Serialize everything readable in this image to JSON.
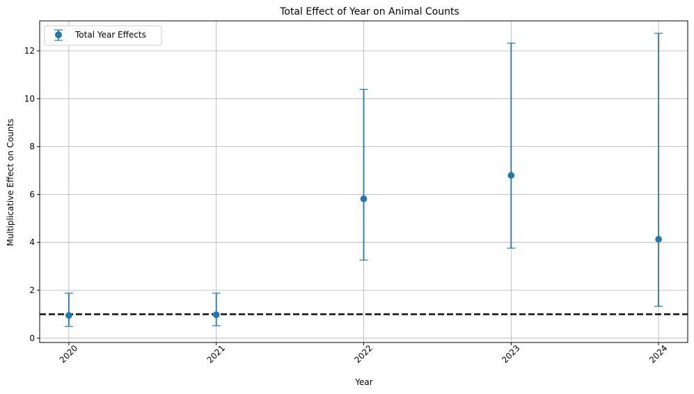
{
  "chart_data": {
    "type": "scatter",
    "title": "Total Effect of Year on Animal Counts",
    "xlabel": "Year",
    "ylabel": "Multiplicative Effect on Counts",
    "categories": [
      "2020",
      "2021",
      "2022",
      "2023",
      "2024"
    ],
    "series": [
      {
        "name": "Total Year Effects",
        "values": [
          0.95,
          0.98,
          5.82,
          6.8,
          4.13
        ],
        "lower": [
          0.49,
          0.52,
          3.26,
          3.76,
          1.33
        ],
        "upper": [
          1.88,
          1.88,
          10.39,
          12.32,
          12.73
        ],
        "color": "#1f77b4"
      }
    ],
    "reference_line": {
      "y": 1.0,
      "color": "#000000",
      "style": "dashed"
    },
    "ylim": [
      -0.18,
      13.25
    ],
    "yticks": [
      0,
      2,
      4,
      6,
      8,
      10,
      12
    ],
    "xtick_rotation": -45,
    "grid": true,
    "legend_position": "top-left"
  }
}
